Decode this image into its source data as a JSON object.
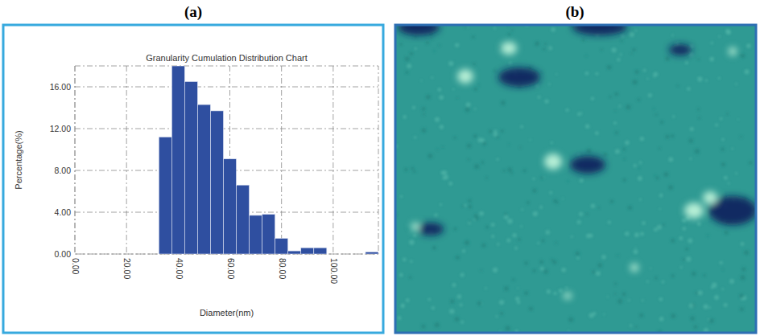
{
  "panel_labels": [
    "(a)",
    "(b)"
  ],
  "chart_data": {
    "type": "histogram",
    "title": "Granularity Cumulation Distribution Chart",
    "x_label": "Diameter(nm)",
    "y_label": "Percentage(%)",
    "bins": [
      32.5,
      37.5,
      42.5,
      47.5,
      52.5,
      57.5,
      62.5,
      67.5,
      72.5,
      77.5,
      82.5,
      87.5,
      92.5,
      97.5,
      102.5,
      107.5,
      112.5,
      117.5
    ],
    "values": [
      11.2,
      18.0,
      16.5,
      14.3,
      13.7,
      9.1,
      6.6,
      3.7,
      3.8,
      1.5,
      0.3,
      0.6,
      0.6,
      0,
      0,
      0,
      0.2
    ],
    "color": "#2f4fa0",
    "xlim": [
      0,
      117.5
    ],
    "xticks": [
      {
        "value": 0,
        "label": "0.00"
      },
      {
        "value": 20,
        "label": "20.00"
      },
      {
        "value": 40,
        "label": "40.00"
      },
      {
        "value": 60,
        "label": "60.00"
      },
      {
        "value": 80,
        "label": "80.00"
      },
      {
        "value": 100,
        "label": "100.00"
      }
    ],
    "ylim": [
      0,
      18
    ],
    "yticks": [
      {
        "value": 0,
        "label": "0.00"
      },
      {
        "value": 4,
        "label": "4.00"
      },
      {
        "value": 8,
        "label": "8.00"
      },
      {
        "value": 12,
        "label": "12.00"
      },
      {
        "value": 16,
        "label": "16.00"
      }
    ],
    "grid": true
  }
}
